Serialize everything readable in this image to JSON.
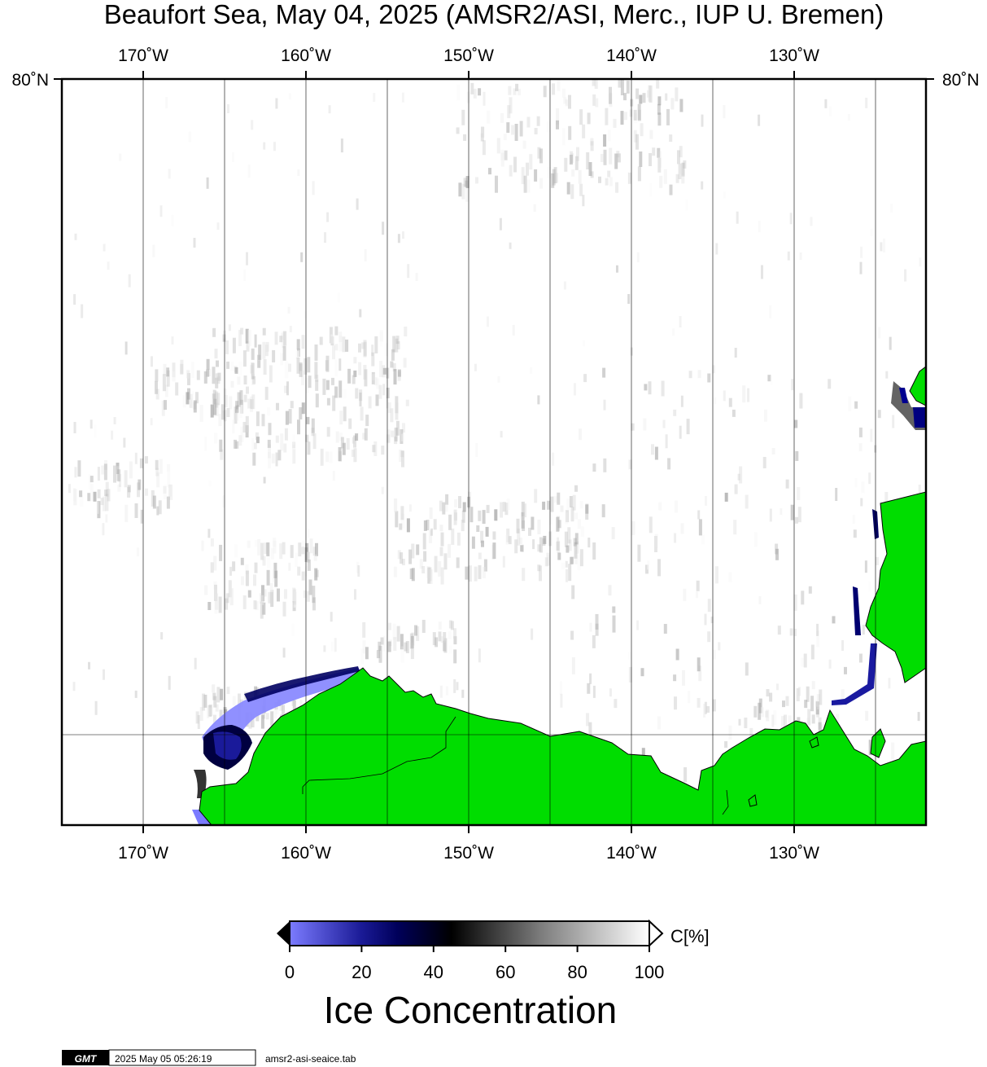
{
  "title": "Beaufort Sea, May 04, 2025 (AMSR2/ASI, Merc., IUP U. Bremen)",
  "map": {
    "projection": "Mercator",
    "lon_range": [
      -175,
      -122
    ],
    "lat_range_note": "top edge 80°N",
    "lon_ticks": [
      {
        "lon": -170,
        "label": "170˚W"
      },
      {
        "lon": -160,
        "label": "160˚W"
      },
      {
        "lon": -150,
        "label": "150˚W"
      },
      {
        "lon": -140,
        "label": "140˚W"
      },
      {
        "lon": -130,
        "label": "130˚W"
      }
    ],
    "lat_label_left": "80˚N",
    "lat_label_right": "80˚N",
    "colors": {
      "land": "#00dd00",
      "ocean": "#ffffff",
      "frame": "#000000"
    }
  },
  "colorbar": {
    "unit_label": "C[%]",
    "title": "Ice Concentration",
    "ticks": [
      "0",
      "20",
      "40",
      "60",
      "80",
      "100"
    ],
    "range": [
      0,
      100
    ],
    "stops": [
      {
        "value": 0,
        "color": "#7b7bff"
      },
      {
        "value": 20,
        "color": "#1a1a96"
      },
      {
        "value": 30,
        "color": "#00005a"
      },
      {
        "value": 45,
        "color": "#000000"
      },
      {
        "value": 70,
        "color": "#7d7d7d"
      },
      {
        "value": 100,
        "color": "#ffffff"
      }
    ]
  },
  "footer": {
    "logo_text": "GMT",
    "timestamp": "2025 May 05 05:26:19",
    "filename": "amsr2-asi-seaice.tab"
  }
}
